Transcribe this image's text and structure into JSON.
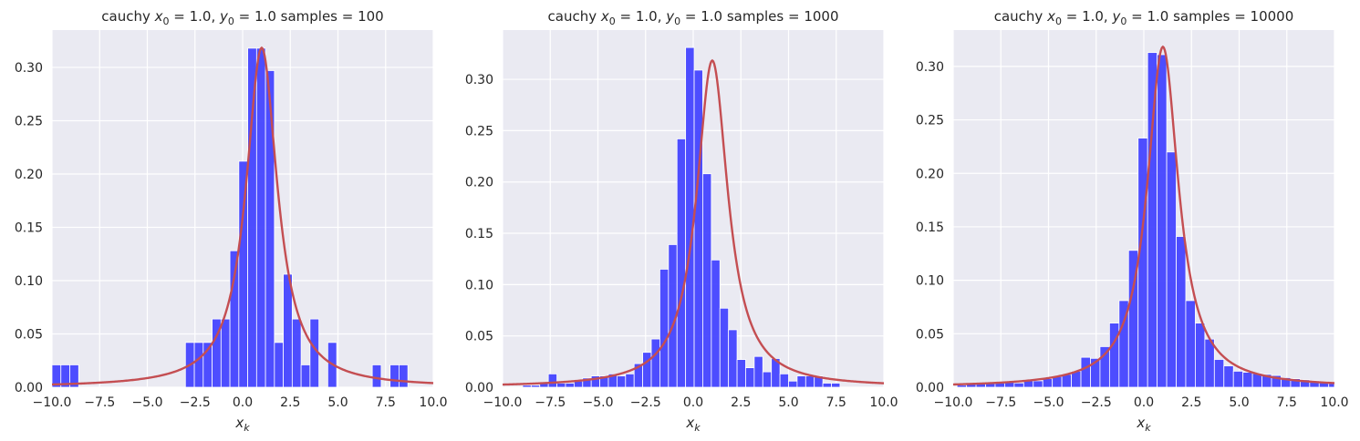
{
  "chart_data": [
    {
      "type": "bar",
      "title": {
        "prefix": "cauchy ",
        "x_sym": "x",
        "x_sub": "0",
        "x_val": " = 1.0, ",
        "y_sym": "y",
        "y_sub": "0",
        "y_val": " = 1.0  samples = 100"
      },
      "xlabel": {
        "sym": "x",
        "sub": "k"
      },
      "xlim": [
        -10,
        10
      ],
      "ylim": [
        0,
        0.335
      ],
      "xticks": [
        "−10.0",
        "−7.5",
        "−5.0",
        "−2.5",
        "0.0",
        "2.5",
        "5.0",
        "7.5",
        "10.0"
      ],
      "yticks": [
        "0.00",
        "0.05",
        "0.10",
        "0.15",
        "0.20",
        "0.25",
        "0.30"
      ],
      "bin_start": -10,
      "bin_width": 0.4667,
      "values": [
        0.021,
        0.021,
        0.021,
        0,
        0,
        0,
        0,
        0,
        0,
        0,
        0,
        0,
        0,
        0,
        0,
        0.042,
        0.042,
        0.042,
        0.064,
        0.064,
        0.128,
        0.212,
        0.318,
        0.318,
        0.297,
        0.042,
        0.106,
        0.064,
        0.021,
        0.064,
        0,
        0.042,
        0,
        0,
        0,
        0,
        0.021,
        0,
        0.021,
        0.021,
        0
      ],
      "grid": true,
      "curve": {
        "type": "cauchy",
        "x0": 1.0,
        "gamma": 1.0,
        "color": "#c44e52"
      },
      "bar_color": "#4444ff"
    },
    {
      "type": "bar",
      "title": {
        "prefix": "cauchy ",
        "x_sym": "x",
        "x_sub": "0",
        "x_val": " = 1.0, ",
        "y_sym": "y",
        "y_sub": "0",
        "y_val": " = 1.0  samples = 1000"
      },
      "xlabel": {
        "sym": "x",
        "sub": "k"
      },
      "xlim": [
        -10,
        10
      ],
      "ylim": [
        0,
        0.348
      ],
      "xticks": [
        "−10.0",
        "−7.5",
        "−5.0",
        "−2.5",
        "0.0",
        "2.5",
        "5.0",
        "7.5",
        "10.0"
      ],
      "yticks": [
        "0.00",
        "0.05",
        "0.10",
        "0.15",
        "0.20",
        "0.25",
        "0.30"
      ],
      "bin_start": -8.95,
      "bin_width": 0.45,
      "values": [
        0.002,
        0.002,
        0.004,
        0.013,
        0.004,
        0.004,
        0.006,
        0.009,
        0.011,
        0.011,
        0.013,
        0.011,
        0.013,
        0.023,
        0.034,
        0.047,
        0.115,
        0.139,
        0.242,
        0.331,
        0.309,
        0.208,
        0.124,
        0.077,
        0.056,
        0.027,
        0.019,
        0.03,
        0.015,
        0.028,
        0.013,
        0.006,
        0.011,
        0.011,
        0.011,
        0.004,
        0.004
      ],
      "grid": true,
      "curve": {
        "type": "cauchy",
        "x0": 1.0,
        "gamma": 1.0,
        "color": "#c44e52"
      },
      "bar_color": "#4444ff"
    },
    {
      "type": "bar",
      "title": {
        "prefix": "cauchy ",
        "x_sym": "x",
        "x_sub": "0",
        "x_val": " = 1.0, ",
        "y_sym": "y",
        "y_sub": "0",
        "y_val": " = 1.0  samples = 10000"
      },
      "xlabel": {
        "sym": "x",
        "sub": "k"
      },
      "xlim": [
        -10,
        10
      ],
      "ylim": [
        0,
        0.334
      ],
      "xticks": [
        "−10.0",
        "−7.5",
        "−5.0",
        "−2.5",
        "0.0",
        "2.5",
        "5.0",
        "7.5",
        "10.0"
      ],
      "yticks": [
        "0.00",
        "0.05",
        "0.10",
        "0.15",
        "0.20",
        "0.25",
        "0.30"
      ],
      "bin_start": -9.8,
      "bin_width": 0.5,
      "values": [
        0.002,
        0.003,
        0.003,
        0.004,
        0.004,
        0.005,
        0.004,
        0.006,
        0.006,
        0.008,
        0.01,
        0.012,
        0.015,
        0.028,
        0.027,
        0.038,
        0.06,
        0.081,
        0.128,
        0.233,
        0.313,
        0.311,
        0.22,
        0.141,
        0.081,
        0.06,
        0.045,
        0.026,
        0.02,
        0.015,
        0.014,
        0.013,
        0.012,
        0.011,
        0.009,
        0.008,
        0.007,
        0.006,
        0.005,
        0.004
      ],
      "grid": true,
      "curve": {
        "type": "cauchy",
        "x0": 1.0,
        "gamma": 1.0,
        "color": "#c44e52"
      },
      "bar_color": "#4444ff"
    }
  ]
}
